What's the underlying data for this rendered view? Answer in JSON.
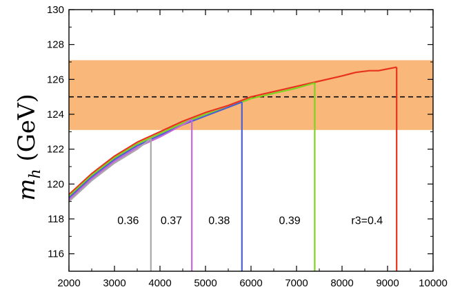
{
  "chart_data": {
    "type": "line",
    "ylabel": "m_h (GeV)",
    "ylabel_parts": {
      "symbol": "m",
      "subscript": "h",
      "unit": "(GeV)"
    },
    "xlim": [
      2000,
      10000
    ],
    "ylim": [
      115,
      130
    ],
    "x_ticks": [
      2000,
      3000,
      4000,
      5000,
      6000,
      7000,
      8000,
      9000,
      10000
    ],
    "y_ticks": [
      116,
      118,
      120,
      122,
      124,
      126,
      128,
      130
    ],
    "band": {
      "y_min": 123.1,
      "y_max": 127.1,
      "color": "#f9b77a"
    },
    "reference_line": {
      "y": 125,
      "style": "dashed",
      "color": "#000000"
    },
    "series": [
      {
        "name": "r3=0.4",
        "color": "#e8321e",
        "x": [
          2000,
          2500,
          3000,
          3500,
          4000,
          4500,
          5000,
          5500,
          6000,
          6500,
          7000,
          7500,
          8000,
          8300,
          8600,
          8800,
          9000,
          9200
        ],
        "y": [
          119.4,
          120.6,
          121.6,
          122.4,
          123.0,
          123.6,
          124.1,
          124.5,
          125.0,
          125.3,
          125.6,
          125.9,
          126.2,
          126.4,
          126.5,
          126.5,
          126.6,
          126.7
        ],
        "cutoff_x": 9200
      },
      {
        "name": "0.39",
        "color": "#7ed321",
        "x": [
          2000,
          2500,
          3000,
          3500,
          4000,
          4500,
          5000,
          5500,
          6000,
          6500,
          7000,
          7400
        ],
        "y": [
          119.3,
          120.5,
          121.5,
          122.3,
          122.9,
          123.5,
          124.0,
          124.4,
          124.9,
          125.2,
          125.5,
          125.8
        ],
        "cutoff_x": 7400
      },
      {
        "name": "0.38",
        "color": "#4a5fd0",
        "x": [
          2000,
          2500,
          3000,
          3500,
          4000,
          4500,
          5000,
          5500,
          5800
        ],
        "y": [
          119.2,
          120.4,
          121.4,
          122.2,
          122.8,
          123.4,
          123.9,
          124.4,
          124.7
        ],
        "cutoff_x": 5800
      },
      {
        "name": "0.37",
        "color": "#c567d8",
        "x": [
          2000,
          2500,
          3000,
          3500,
          4000,
          4500,
          4700
        ],
        "y": [
          119.1,
          120.3,
          121.3,
          122.1,
          122.7,
          123.4,
          123.7
        ],
        "cutoff_x": 4700
      },
      {
        "name": "0.36",
        "color": "#a8a8a8",
        "x": [
          2000,
          2500,
          3000,
          3500,
          3800
        ],
        "y": [
          119.0,
          120.2,
          121.2,
          122.0,
          122.6
        ],
        "cutoff_x": 3800
      }
    ],
    "labels": [
      {
        "text": "0.36",
        "x": 3300,
        "y": 117.7
      },
      {
        "text": "0.37",
        "x": 4250,
        "y": 117.7
      },
      {
        "text": "0.38",
        "x": 5300,
        "y": 117.7
      },
      {
        "text": "0.39",
        "x": 6850,
        "y": 117.7
      },
      {
        "text": "r3=0.4",
        "x": 8550,
        "y": 117.7
      }
    ],
    "grid": false,
    "legend": "none"
  }
}
